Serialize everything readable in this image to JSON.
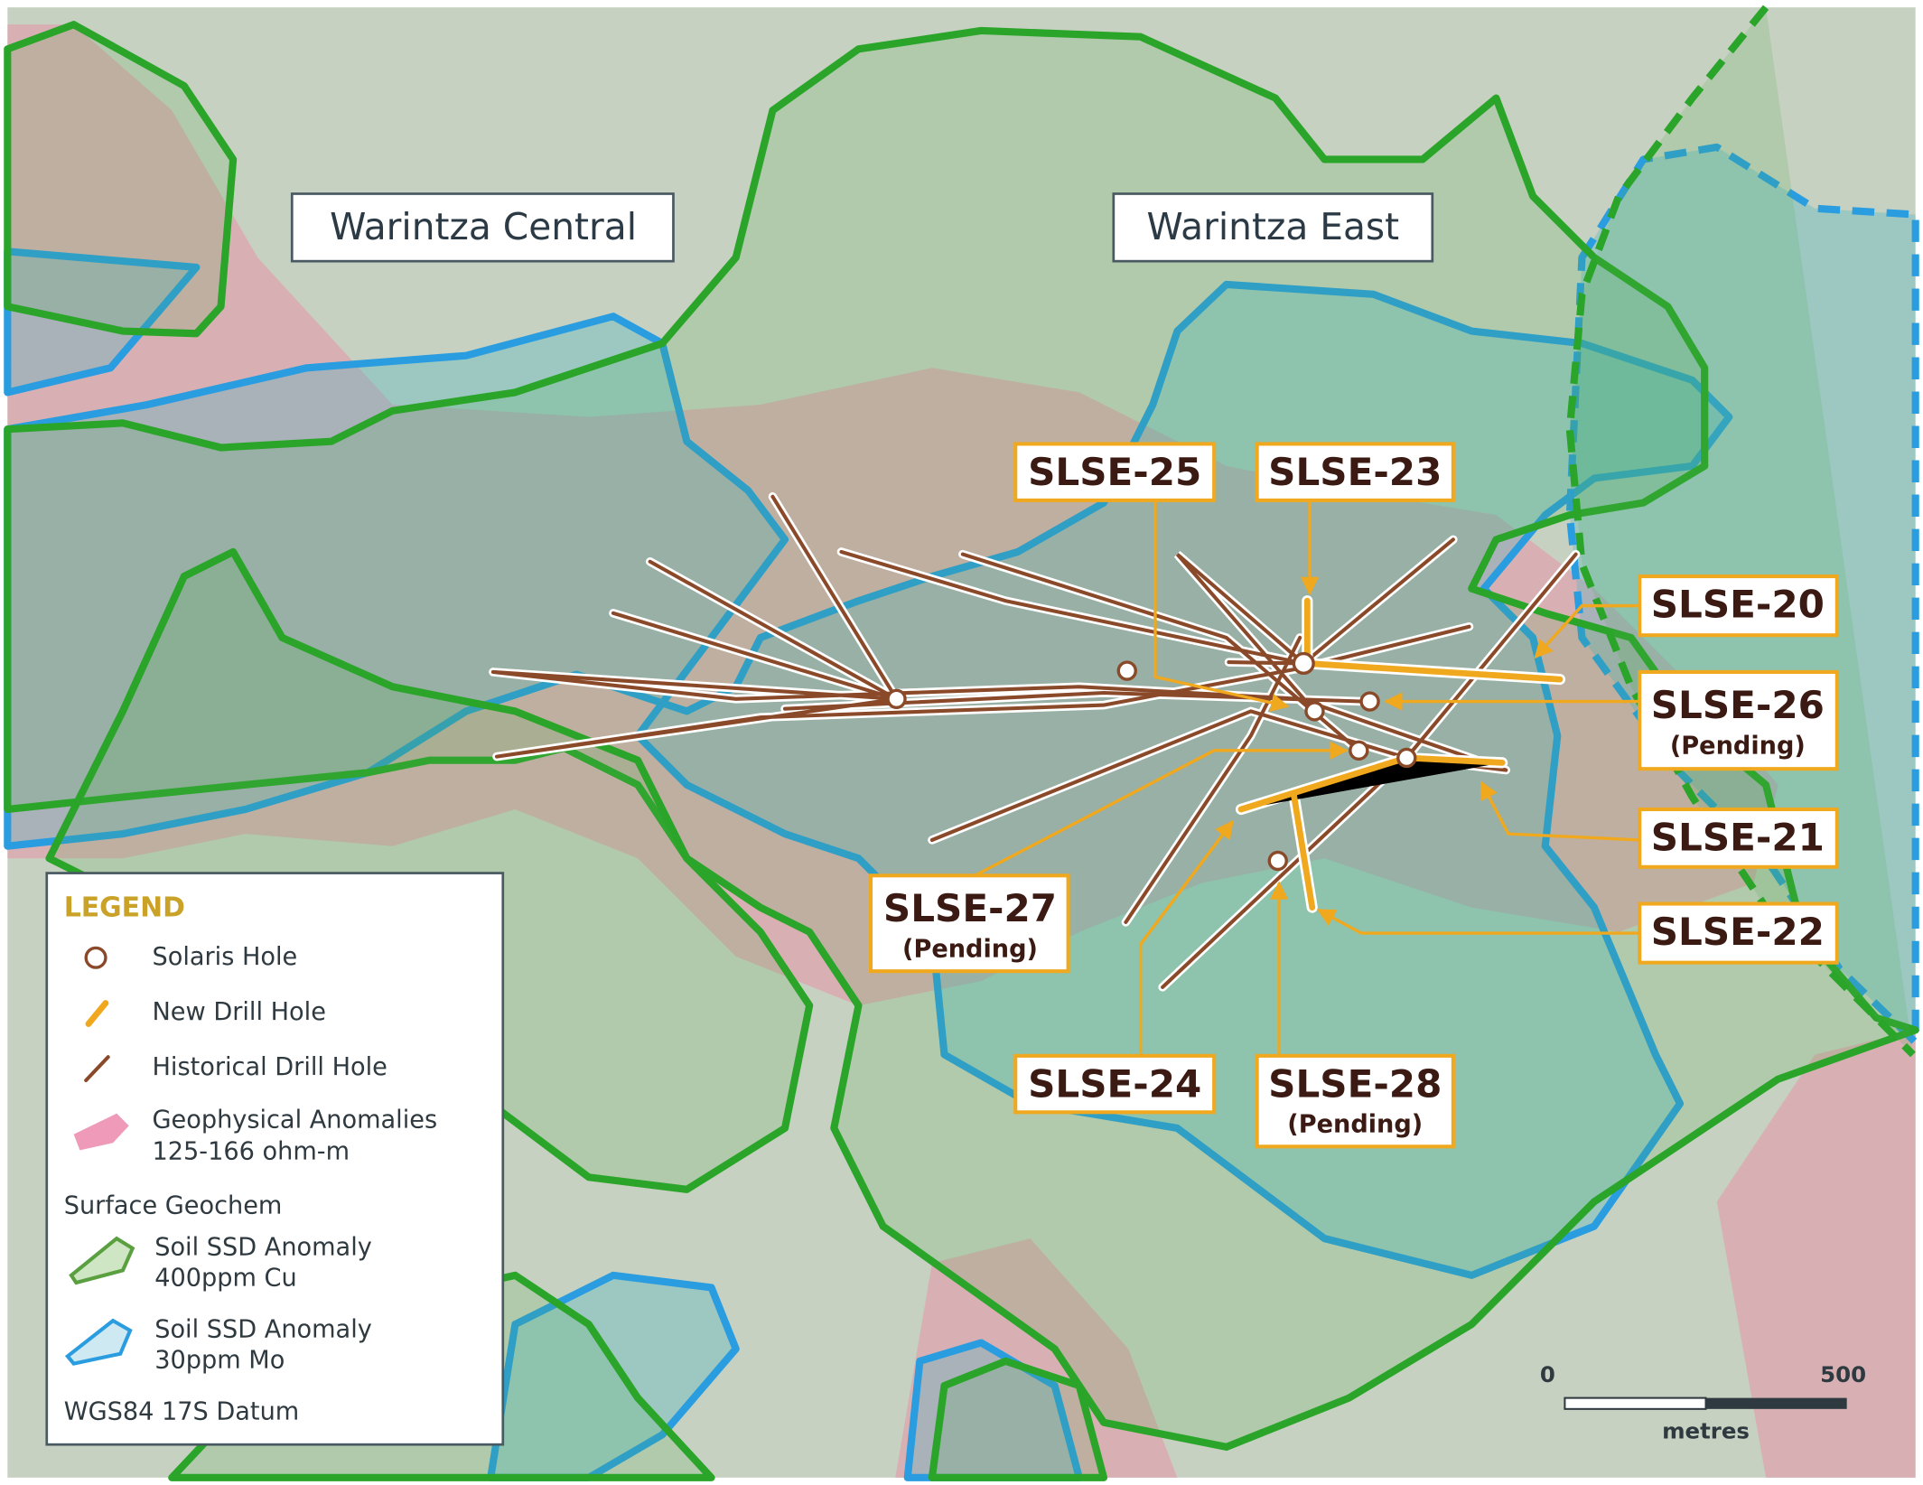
{
  "areas": [
    "Warintza Central",
    "Warintza East"
  ],
  "holes": [
    {
      "label": "SLSE-25"
    },
    {
      "label": "SLSE-23"
    },
    {
      "label": "SLSE-20"
    },
    {
      "label": "SLSE-26",
      "status": "(Pending)"
    },
    {
      "label": "SLSE-21"
    },
    {
      "label": "SLSE-22"
    },
    {
      "label": "SLSE-27",
      "status": "(Pending)"
    },
    {
      "label": "SLSE-24"
    },
    {
      "label": "SLSE-28",
      "status": "(Pending)"
    }
  ],
  "legend": {
    "title": "LEGEND",
    "items": [
      "Solaris Hole",
      "New Drill Hole",
      "Historical Drill Hole",
      [
        "Geophysical Anomalies",
        "125-166 ohm-m"
      ],
      [
        "Soil SSD Anomaly",
        "400ppm Cu"
      ],
      [
        "Soil SSD Anomaly",
        "30ppm Mo"
      ]
    ],
    "group": "Surface Geochem",
    "datum": "WGS84 17S Datum"
  },
  "scale_bar": {
    "start": "0",
    "end": "500",
    "unit": "metres"
  }
}
